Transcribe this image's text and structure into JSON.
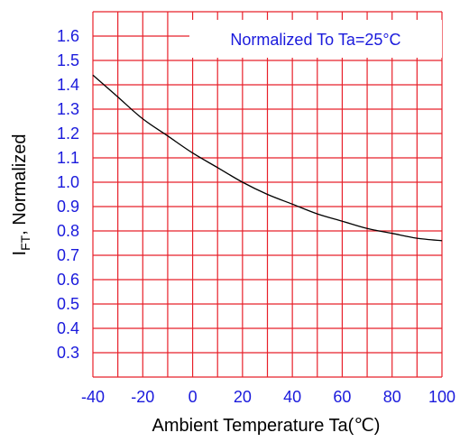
{
  "chart_data": {
    "type": "line",
    "title": "",
    "xlabel": "Ambient Temperature Ta(℃)",
    "ylabel": "I",
    "ylabel_sub": "FT",
    "ylabel_suffix": ", Normalized",
    "annotation": "Normalized To Ta=25°C",
    "xlim": [
      -40,
      100
    ],
    "ylim": [
      0.2,
      1.7
    ],
    "x_ticks": [
      {
        "value": -40,
        "label": "-40"
      },
      {
        "value": -20,
        "label": "-20"
      },
      {
        "value": 0,
        "label": "0"
      },
      {
        "value": 20,
        "label": "20"
      },
      {
        "value": 40,
        "label": "40"
      },
      {
        "value": 60,
        "label": "60"
      },
      {
        "value": 80,
        "label": "80"
      },
      {
        "value": 100,
        "label": "100"
      }
    ],
    "y_ticks": [
      {
        "value": 1.6,
        "label": "1.6"
      },
      {
        "value": 1.5,
        "label": "1.5"
      },
      {
        "value": 1.4,
        "label": "1.4"
      },
      {
        "value": 1.3,
        "label": "1.3"
      },
      {
        "value": 1.2,
        "label": "1.2"
      },
      {
        "value": 1.1,
        "label": "1.1"
      },
      {
        "value": 1.0,
        "label": "1.0"
      },
      {
        "value": 0.9,
        "label": "0.9"
      },
      {
        "value": 0.8,
        "label": "0.8"
      },
      {
        "value": 0.7,
        "label": "0.7"
      },
      {
        "value": 0.6,
        "label": "0.6"
      },
      {
        "value": 0.5,
        "label": "0.5"
      },
      {
        "value": 0.4,
        "label": "0.4"
      },
      {
        "value": 0.3,
        "label": "0.3"
      }
    ],
    "grid": true,
    "x_grid_step": 10,
    "y_grid_step": 0.1,
    "series": [
      {
        "x": [
          -40,
          -30,
          -20,
          -10,
          0,
          10,
          20,
          30,
          40,
          50,
          60,
          70,
          80,
          90,
          100
        ],
        "y": [
          1.44,
          1.35,
          1.26,
          1.19,
          1.12,
          1.06,
          1.0,
          0.95,
          0.91,
          0.87,
          0.84,
          0.81,
          0.79,
          0.77,
          0.76
        ]
      }
    ],
    "colors": {
      "grid": "#e8202a",
      "tick_label": "#1a1adc",
      "curve": "#000000",
      "annotation": "#1a1adc",
      "axis_title": "#000000"
    }
  }
}
